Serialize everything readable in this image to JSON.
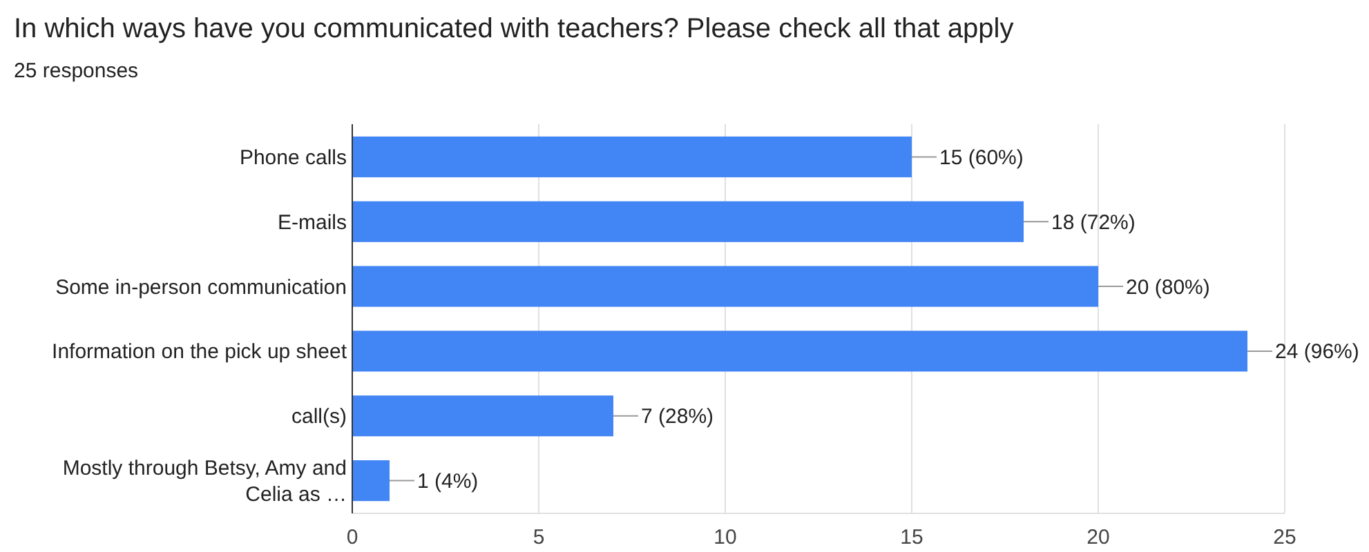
{
  "chart_data": {
    "type": "bar",
    "orientation": "horizontal",
    "title": "In which ways have you communicated with teachers? Please check all that apply",
    "subtitle": "25 responses",
    "categories": [
      "Phone calls",
      "E-mails",
      "Some in-person communication",
      "Information on the pick up sheet",
      "call(s)",
      "Mostly through Betsy, Amy and Celia as …"
    ],
    "values": [
      15,
      18,
      20,
      24,
      7,
      1
    ],
    "value_labels": [
      "15 (60%)",
      "18 (72%)",
      "20 (80%)",
      "24 (96%)",
      "7 (28%)",
      "1 (4%)"
    ],
    "color": "#4285f4",
    "xlim": [
      0,
      25
    ],
    "xticks": [
      0,
      5,
      10,
      15,
      20,
      25
    ],
    "grid": "x"
  }
}
